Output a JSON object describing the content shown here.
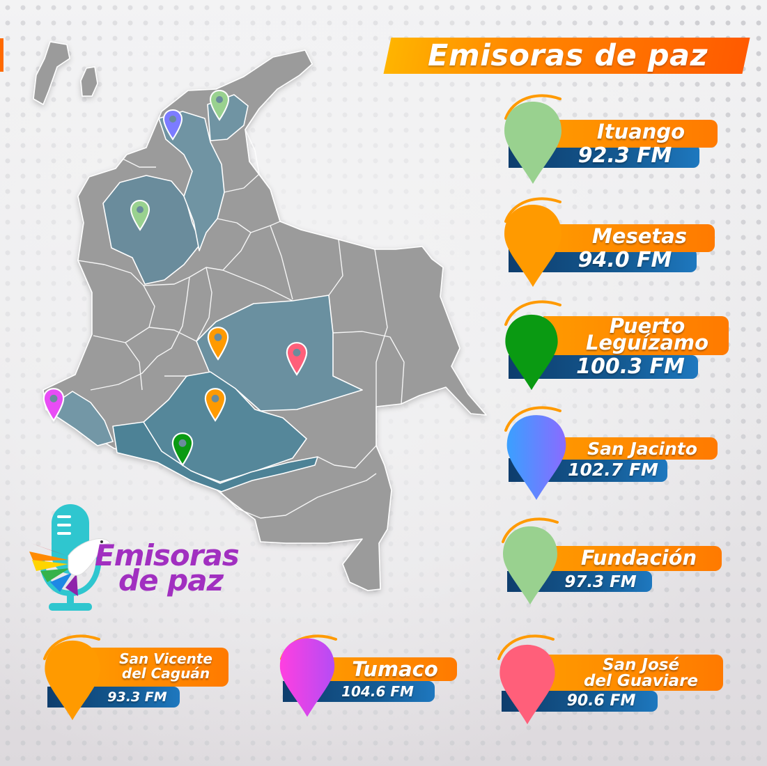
{
  "header": {
    "title": "Emisoras de paz"
  },
  "logo": {
    "line1": "Emisoras",
    "line2": "de paz"
  },
  "stations": [
    {
      "name_lines": [
        "Ituango"
      ],
      "frequency": "92.3 FM",
      "color": "#99d18f"
    },
    {
      "name_lines": [
        "Mesetas"
      ],
      "frequency": "94.0 FM",
      "color": "#ff9a00"
    },
    {
      "name_lines": [
        "Puerto",
        "Leguízamo"
      ],
      "frequency": "100.3 FM",
      "color": "#0a9a12"
    },
    {
      "name_lines": [
        "San Jacinto"
      ],
      "frequency": "102.7 FM",
      "color": "#6b7cff"
    },
    {
      "name_lines": [
        "Fundación"
      ],
      "frequency": "97.3 FM",
      "color": "#99d18f"
    },
    {
      "name_lines": [
        "San Vicente",
        "del Caguán"
      ],
      "frequency": "93.3 FM",
      "color": "#ff9a00"
    },
    {
      "name_lines": [
        "Tumaco"
      ],
      "frequency": "104.6 FM",
      "color": "#e84cf5"
    },
    {
      "name_lines": [
        "San José",
        "del Guaviare"
      ],
      "frequency": "90.6 FM",
      "color": "#ff5f7a"
    }
  ],
  "map_markers": [
    {
      "station": "Fundación",
      "color": "#99d18f"
    },
    {
      "station": "San Jacinto",
      "color": "#7c7cff"
    },
    {
      "station": "Ituango",
      "color": "#99d18f"
    },
    {
      "station": "Mesetas",
      "color": "#ff9a00"
    },
    {
      "station": "San José del Guaviare",
      "color": "#ff5f7a"
    },
    {
      "station": "San Vicente del Caguán",
      "color": "#ff9a00"
    },
    {
      "station": "Tumaco",
      "color": "#e84cf5"
    },
    {
      "station": "Puerto Leguízamo",
      "color": "#0a9a12"
    }
  ]
}
